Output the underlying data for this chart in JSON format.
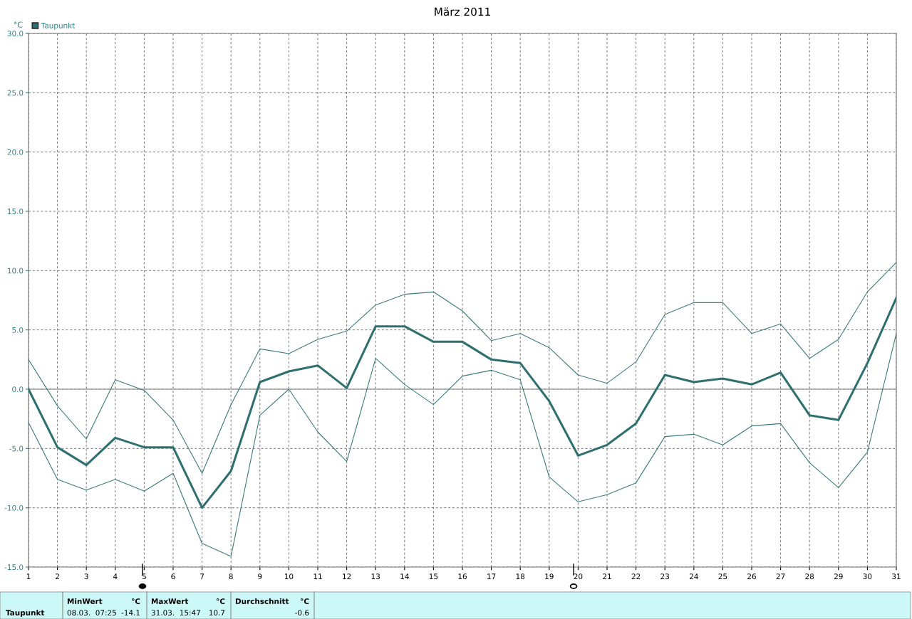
{
  "chart_data": {
    "type": "line",
    "title": "März 2011",
    "ylabel": "°C",
    "x": [
      1,
      2,
      3,
      4,
      5,
      6,
      7,
      8,
      9,
      10,
      11,
      12,
      13,
      14,
      15,
      16,
      17,
      18,
      19,
      20,
      21,
      22,
      23,
      24,
      25,
      26,
      27,
      28,
      29,
      30,
      31
    ],
    "series": [
      {
        "name": "Taupunkt",
        "color": "#2f6f6f",
        "values": [
          0.0,
          -4.9,
          -6.4,
          -4.1,
          -4.9,
          -4.9,
          -10.0,
          -6.9,
          0.6,
          1.5,
          2.0,
          0.1,
          5.3,
          5.3,
          4.0,
          4.0,
          2.5,
          2.2,
          -1.0,
          -5.6,
          -4.7,
          -2.9,
          1.2,
          0.6,
          0.9,
          0.4,
          1.4,
          -2.2,
          -2.6,
          2.2,
          7.7
        ]
      },
      {
        "color": "#3b7b7b",
        "values": [
          2.5,
          -1.4,
          -4.2,
          0.8,
          -0.1,
          -2.6,
          -7.1,
          -1.3,
          3.4,
          3.0,
          4.2,
          4.9,
          7.1,
          8.0,
          8.2,
          6.6,
          4.1,
          4.7,
          3.5,
          1.2,
          0.5,
          2.3,
          6.3,
          7.3,
          7.3,
          4.7,
          5.5,
          2.6,
          4.2,
          8.2,
          10.7
        ]
      },
      {
        "color": "#3b7b7b",
        "values": [
          -2.8,
          -7.6,
          -8.5,
          -7.6,
          -8.6,
          -7.1,
          -13.0,
          -14.1,
          -2.2,
          0.0,
          -3.6,
          -6.1,
          2.6,
          0.4,
          -1.3,
          1.1,
          1.6,
          0.8,
          -7.4,
          -9.5,
          -8.9,
          -7.9,
          -4.0,
          -3.8,
          -4.7,
          -3.1,
          -2.9,
          -6.2,
          -8.3,
          -5.3,
          4.7
        ]
      }
    ],
    "xlim": [
      1,
      31
    ],
    "xticks": [
      1,
      2,
      3,
      4,
      5,
      6,
      7,
      8,
      9,
      10,
      11,
      12,
      13,
      14,
      15,
      16,
      17,
      18,
      19,
      20,
      21,
      22,
      23,
      24,
      25,
      26,
      27,
      28,
      29,
      30,
      31
    ],
    "ylim": [
      -15,
      30
    ],
    "yticks": [
      {
        "value": -15,
        "label": "-15.0"
      },
      {
        "value": -10,
        "label": "-10.0"
      },
      {
        "value": -5,
        "label": "-5.0"
      },
      {
        "value": 0,
        "label": "0.0"
      },
      {
        "value": 5,
        "label": "5.0"
      },
      {
        "value": 10,
        "label": "10.0"
      },
      {
        "value": 15,
        "label": "15.0"
      },
      {
        "value": 20,
        "label": "20.0"
      },
      {
        "value": 25,
        "label": "25.0"
      },
      {
        "value": 30,
        "label": "30.0"
      }
    ],
    "ref_lines": [
      {
        "axis": "y",
        "value": 0,
        "color": "#a0a0a0"
      }
    ],
    "grid": true,
    "legend": "top left",
    "marker": "none",
    "line_style": "solid",
    "annotations": [
      "Taupunkt",
      "MinWert",
      "°C",
      "08.03.  07:25",
      "-14.1",
      "MaxWert",
      "°C",
      "31.03.  15:47",
      "10.7",
      "Durchschnitt",
      "°C",
      "-0.6"
    ]
  }
}
